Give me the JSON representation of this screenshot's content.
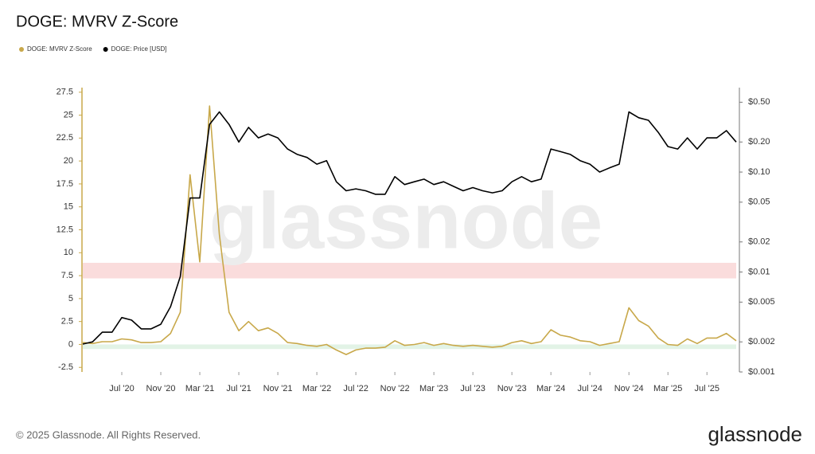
{
  "chart_data": {
    "type": "line",
    "title": "DOGE: MVRV Z-Score",
    "x": [
      "2020-03",
      "2020-04",
      "2020-05",
      "2020-06",
      "2020-07",
      "2020-08",
      "2020-09",
      "2020-10",
      "2020-11",
      "2020-12",
      "2021-01",
      "2021-02",
      "2021-03",
      "2021-04",
      "2021-05",
      "2021-06",
      "2021-07",
      "2021-08",
      "2021-09",
      "2021-10",
      "2021-11",
      "2021-12",
      "2022-01",
      "2022-02",
      "2022-03",
      "2022-04",
      "2022-05",
      "2022-06",
      "2022-07",
      "2022-08",
      "2022-09",
      "2022-10",
      "2022-11",
      "2022-12",
      "2023-01",
      "2023-02",
      "2023-03",
      "2023-04",
      "2023-05",
      "2023-06",
      "2023-07",
      "2023-08",
      "2023-09",
      "2023-10",
      "2023-11",
      "2023-12",
      "2024-01",
      "2024-02",
      "2024-03",
      "2024-04",
      "2024-05",
      "2024-06",
      "2024-07",
      "2024-08",
      "2024-09",
      "2024-10",
      "2024-11",
      "2024-12",
      "2025-01",
      "2025-02",
      "2025-03",
      "2025-04",
      "2025-05",
      "2025-06",
      "2025-07",
      "2025-08",
      "2025-09",
      "2025-10"
    ],
    "series": [
      {
        "name": "DOGE: MVRV Z-Score",
        "color": "#c8a84a",
        "axis": "y",
        "values": [
          0.2,
          0.1,
          0.3,
          0.3,
          0.6,
          0.5,
          0.2,
          0.2,
          0.3,
          1.2,
          3.5,
          18.5,
          9,
          26,
          12,
          3.5,
          1.5,
          2.5,
          1.5,
          1.8,
          1.2,
          0.2,
          0.1,
          -0.1,
          -0.2,
          0,
          -0.6,
          -1.1,
          -0.6,
          -0.4,
          -0.4,
          -0.3,
          0.4,
          -0.1,
          0,
          0.2,
          -0.1,
          0.1,
          -0.1,
          -0.2,
          -0.1,
          -0.2,
          -0.3,
          -0.2,
          0.2,
          0.4,
          0.1,
          0.3,
          1.6,
          1.0,
          0.8,
          0.4,
          0.3,
          -0.1,
          0.1,
          0.3,
          4.0,
          2.6,
          2.0,
          0.7,
          0,
          -0.1,
          0.6,
          0.1,
          0.7,
          0.7,
          1.2,
          0.4
        ]
      },
      {
        "name": "DOGE: Price [USD]",
        "color": "#000000",
        "axis": "y2",
        "values": [
          0.0019,
          0.002,
          0.0025,
          0.0025,
          0.0035,
          0.0033,
          0.0027,
          0.0027,
          0.003,
          0.0045,
          0.009,
          0.055,
          0.055,
          0.3,
          0.4,
          0.3,
          0.2,
          0.28,
          0.22,
          0.24,
          0.22,
          0.17,
          0.15,
          0.14,
          0.12,
          0.13,
          0.08,
          0.065,
          0.068,
          0.065,
          0.06,
          0.06,
          0.09,
          0.075,
          0.08,
          0.085,
          0.075,
          0.08,
          0.072,
          0.065,
          0.07,
          0.065,
          0.062,
          0.065,
          0.08,
          0.09,
          0.08,
          0.085,
          0.17,
          0.16,
          0.15,
          0.13,
          0.12,
          0.1,
          0.11,
          0.12,
          0.4,
          0.35,
          0.33,
          0.25,
          0.18,
          0.17,
          0.22,
          0.17,
          0.22,
          0.22,
          0.26,
          0.2
        ]
      }
    ],
    "xlim": [
      "2020-03",
      "2025-10"
    ],
    "xticks": [
      {
        "value": "2020-07",
        "label": "Jul '20"
      },
      {
        "value": "2020-11",
        "label": "Nov '20"
      },
      {
        "value": "2021-03",
        "label": "Mar '21"
      },
      {
        "value": "2021-07",
        "label": "Jul '21"
      },
      {
        "value": "2021-11",
        "label": "Nov '21"
      },
      {
        "value": "2022-03",
        "label": "Mar '22"
      },
      {
        "value": "2022-07",
        "label": "Jul '22"
      },
      {
        "value": "2022-11",
        "label": "Nov '22"
      },
      {
        "value": "2023-03",
        "label": "Mar '23"
      },
      {
        "value": "2023-07",
        "label": "Jul '23"
      },
      {
        "value": "2023-11",
        "label": "Nov '23"
      },
      {
        "value": "2024-03",
        "label": "Mar '24"
      },
      {
        "value": "2024-07",
        "label": "Jul '24"
      },
      {
        "value": "2024-11",
        "label": "Nov '24"
      },
      {
        "value": "2025-03",
        "label": "Mar '25"
      },
      {
        "value": "2025-07",
        "label": "Jul '25"
      }
    ],
    "ylim": [
      -3,
      28
    ],
    "yticks": [
      -2.5,
      0,
      2.5,
      5,
      7.5,
      10,
      12.5,
      15,
      17.5,
      20,
      22.5,
      25,
      27.5
    ],
    "y2scale": "log",
    "y2lim": [
      0.001,
      0.7
    ],
    "y2ticks": [
      {
        "value": 0.001,
        "label": "$0.001"
      },
      {
        "value": 0.002,
        "label": "$0.002"
      },
      {
        "value": 0.005,
        "label": "$0.005"
      },
      {
        "value": 0.01,
        "label": "$0.01"
      },
      {
        "value": 0.02,
        "label": "$0.02"
      },
      {
        "value": 0.05,
        "label": "$0.05"
      },
      {
        "value": 0.1,
        "label": "$0.10"
      },
      {
        "value": 0.2,
        "label": "$0.20"
      },
      {
        "value": 0.5,
        "label": "$0.50"
      }
    ],
    "bands": [
      {
        "from": 7.2,
        "to": 8.9,
        "color": "#fadcdc"
      },
      {
        "from": -0.5,
        "to": 0,
        "color": "#e2f3e6"
      }
    ],
    "legend": "top-left",
    "watermark": "glassnode"
  },
  "footer": {
    "copyright": "© 2025 Glassnode. All Rights Reserved.",
    "logo": "glassnode"
  }
}
